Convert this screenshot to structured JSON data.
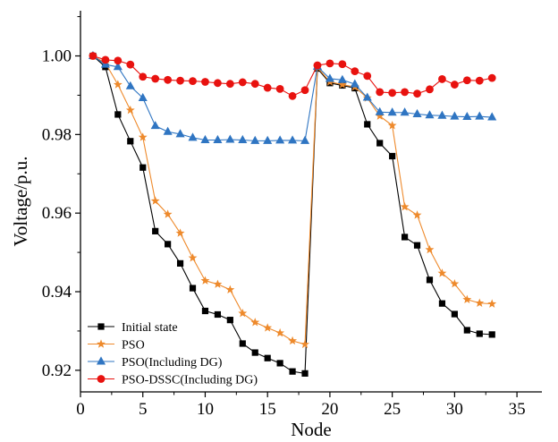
{
  "chart_data": {
    "type": "line",
    "xlabel": "Node",
    "ylabel": "Voltage/p.u.",
    "xlim": [
      0,
      37
    ],
    "ylim": [
      0.9145,
      1.0115
    ],
    "xticks": [
      0,
      5,
      10,
      15,
      20,
      25,
      30,
      35
    ],
    "xtick_labels": [
      "0",
      "5",
      "10",
      "15",
      "20",
      "25",
      "30",
      "35"
    ],
    "yticks": [
      0.92,
      0.94,
      0.96,
      0.98,
      1.0
    ],
    "ytick_labels": [
      "0.92",
      "0.94",
      "0.96",
      "0.98",
      "1.00"
    ],
    "grid": false,
    "legend_position": "bottom-left",
    "x": [
      1,
      2,
      3,
      4,
      5,
      6,
      7,
      8,
      9,
      10,
      11,
      12,
      13,
      14,
      15,
      16,
      17,
      18,
      19,
      20,
      21,
      22,
      23,
      24,
      25,
      26,
      27,
      28,
      29,
      30,
      31,
      32,
      33
    ],
    "series": [
      {
        "name": "Initial state",
        "color": "#000000",
        "marker": "square",
        "values": [
          1.0,
          0.9972,
          0.9851,
          0.9783,
          0.9716,
          0.9554,
          0.9521,
          0.9472,
          0.9409,
          0.9351,
          0.9342,
          0.9328,
          0.9268,
          0.9245,
          0.9231,
          0.9218,
          0.9197,
          0.9192,
          0.9968,
          0.9931,
          0.9925,
          0.9918,
          0.9826,
          0.9778,
          0.9745,
          0.9539,
          0.9518,
          0.943,
          0.937,
          0.9343,
          0.9302,
          0.9293,
          0.9291
        ]
      },
      {
        "name": "PSO",
        "color": "#ee8a2c",
        "marker": "star",
        "values": [
          1.0,
          0.9982,
          0.9927,
          0.9862,
          0.9793,
          0.9631,
          0.9597,
          0.9549,
          0.9486,
          0.9428,
          0.9419,
          0.9405,
          0.9345,
          0.9322,
          0.9308,
          0.9295,
          0.9275,
          0.9266,
          0.9971,
          0.9934,
          0.9927,
          0.9921,
          0.9893,
          0.9847,
          0.9823,
          0.9616,
          0.9595,
          0.9507,
          0.9447,
          0.942,
          0.938,
          0.9371,
          0.9369
        ]
      },
      {
        "name": "PSO(Including DG)",
        "color": "#2f75c2",
        "marker": "triangle",
        "values": [
          1.0,
          0.9978,
          0.9972,
          0.9923,
          0.9893,
          0.9822,
          0.9807,
          0.9801,
          0.9792,
          0.9786,
          0.9786,
          0.9787,
          0.9786,
          0.9784,
          0.9784,
          0.9785,
          0.9785,
          0.9784,
          0.9973,
          0.9942,
          0.9939,
          0.9928,
          0.9894,
          0.9857,
          0.9856,
          0.9856,
          0.9852,
          0.9849,
          0.9848,
          0.9846,
          0.9845,
          0.9846,
          0.9844
        ]
      },
      {
        "name": "PSO-DSSC(Including DG)",
        "color": "#e8120f",
        "marker": "circle",
        "values": [
          1.0,
          0.999,
          0.9988,
          0.9978,
          0.9947,
          0.9942,
          0.9939,
          0.9937,
          0.9936,
          0.9934,
          0.9931,
          0.9929,
          0.9933,
          0.9929,
          0.9919,
          0.9916,
          0.9898,
          0.9913,
          0.9976,
          0.9981,
          0.9979,
          0.9961,
          0.9949,
          0.9908,
          0.9906,
          0.9908,
          0.9904,
          0.9915,
          0.9941,
          0.9927,
          0.9938,
          0.9937,
          0.9944
        ]
      }
    ]
  }
}
